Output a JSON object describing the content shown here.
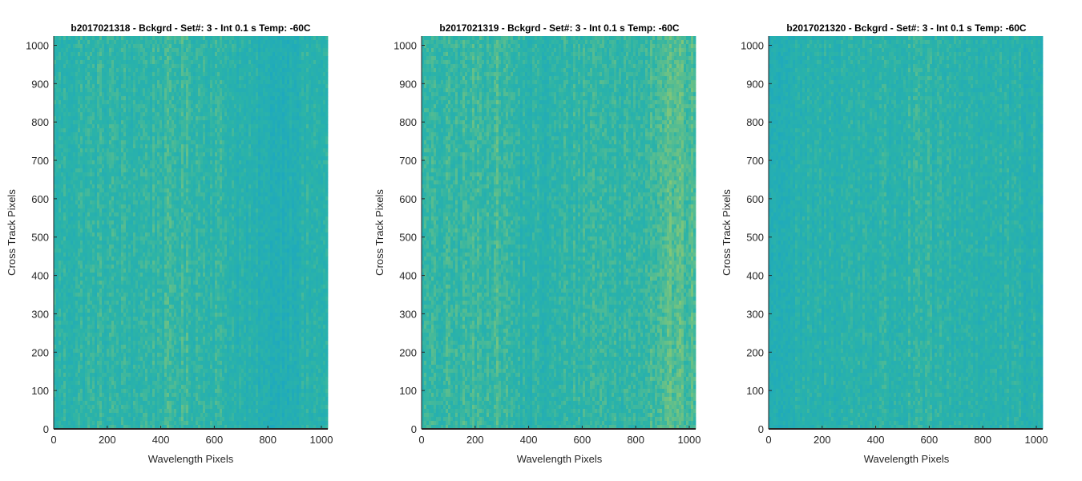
{
  "colors": {
    "low": "#1aa6c4",
    "mid": "#2bb3a8",
    "high": "#9ccc6b",
    "axis": "#262626"
  },
  "chart_data": [
    {
      "type": "heatmap",
      "title": "b2017021318 - Bckgrd - Set#: 3 - Int 0.1 s Temp: -60C",
      "xlabel": "Wavelength Pixels",
      "ylabel": "Cross Track Pixels",
      "xlim": [
        0,
        1024
      ],
      "ylim": [
        0,
        1024
      ],
      "xticks": [
        0,
        200,
        400,
        600,
        800,
        1000
      ],
      "xtick_labels": [
        "0",
        "200",
        "400",
        "600",
        "800",
        "1000"
      ],
      "yticks": [
        0,
        100,
        200,
        300,
        400,
        500,
        600,
        700,
        800,
        900,
        1000
      ],
      "ytick_labels": [
        "0",
        "100",
        "200",
        "300",
        "400",
        "500",
        "600",
        "700",
        "800",
        "900",
        "1000"
      ],
      "column_profile": [
        0.45,
        0.48,
        0.5,
        0.48,
        0.52,
        0.55,
        0.52,
        0.48,
        0.36,
        0.3,
        0.4,
        0.45
      ]
    },
    {
      "type": "heatmap",
      "title": "b2017021319 - Bckgrd - Set#: 3 - Int 0.1 s Temp: -60C",
      "xlabel": "Wavelength Pixels",
      "ylabel": "Cross Track Pixels",
      "xlim": [
        0,
        1024
      ],
      "ylim": [
        0,
        1024
      ],
      "xticks": [
        0,
        200,
        400,
        600,
        800,
        1000
      ],
      "xtick_labels": [
        "0",
        "200",
        "400",
        "600",
        "800",
        "1000"
      ],
      "yticks": [
        0,
        100,
        200,
        300,
        400,
        500,
        600,
        700,
        800,
        900,
        1000
      ],
      "ytick_labels": [
        "0",
        "100",
        "200",
        "300",
        "400",
        "500",
        "600",
        "700",
        "800",
        "900",
        "1000"
      ],
      "column_profile": [
        0.5,
        0.52,
        0.55,
        0.6,
        0.45,
        0.42,
        0.5,
        0.55,
        0.5,
        0.58,
        0.7,
        0.62
      ]
    },
    {
      "type": "heatmap",
      "title": "b2017021320 - Bckgrd - Set#: 3 - Int 0.1 s Temp: -60C",
      "xlabel": "Wavelength Pixels",
      "ylabel": "Cross Track Pixels",
      "xlim": [
        0,
        1024
      ],
      "ylim": [
        0,
        1024
      ],
      "xticks": [
        0,
        200,
        400,
        600,
        800,
        1000
      ],
      "xtick_labels": [
        "0",
        "200",
        "400",
        "600",
        "800",
        "1000"
      ],
      "yticks": [
        0,
        100,
        200,
        300,
        400,
        500,
        600,
        700,
        800,
        900,
        1000
      ],
      "ytick_labels": [
        "0",
        "100",
        "200",
        "300",
        "400",
        "500",
        "600",
        "700",
        "800",
        "900",
        "1000"
      ],
      "column_profile": [
        0.3,
        0.36,
        0.4,
        0.44,
        0.46,
        0.45,
        0.47,
        0.44,
        0.45,
        0.42,
        0.4,
        0.38
      ]
    }
  ]
}
